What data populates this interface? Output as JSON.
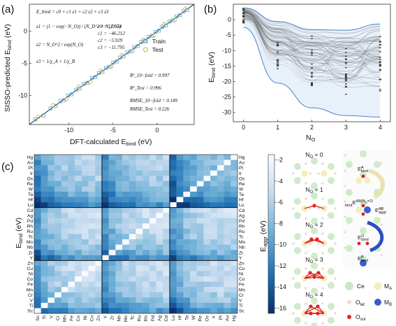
{
  "panels": {
    "a": {
      "label": "(a)",
      "equations": {
        "e1": "E_bind = c0 + c1 z1 + c2 z2 + c3 z3",
        "z1": "z1 = (1 − exp(−N_O)) / (N_D^2 + N_O^2)",
        "z2": "z2 = N_O^2 / exp(N_O)",
        "z3": "z3 = 1/χ_A + 1/χ_B",
        "c0": "c0 = 12.554",
        "c1": "c1 = −46.212",
        "c2": "c2 = −5.929",
        "c3": "c3 = −11.795",
        "r2_10": "R²_10−fold = 0.997",
        "r2_test": "R²_Test = 0.996",
        "rmse_10": "RMSE_10−fold = 0.149",
        "rmse_test": "RMSE_Test = 0.226"
      },
      "legend": {
        "train": "Train",
        "test": "Test"
      },
      "xlabel": "DFT-calculated E",
      "xlabel_sub": "bind",
      "xlabel_unit": " (eV)",
      "ylabel": "SISSO-predicted E",
      "ylabel_sub": "bind",
      "ylabel_unit": " (eV)",
      "colors": {
        "train": "#4fa3d9",
        "test": "#c9b24a"
      }
    },
    "b": {
      "label": "(b)",
      "xlabel": "N",
      "xlabel_sub": "O",
      "ylabel": "E",
      "ylabel_sub": "bind",
      "ylabel_unit": " (eV)"
    },
    "c": {
      "label": "(c)",
      "ylabel": "E",
      "ylabel_sub": "bind",
      "ylabel_unit": " (eV)",
      "colorbar_label": "E",
      "colorbar_sub": "aggr",
      "colorbar_unit": " (eV)",
      "colorbar_ticks": [
        "-2",
        "-4",
        "-6",
        "-8",
        "-10",
        "-12",
        "-14",
        "-16"
      ]
    },
    "side": {
      "titles": [
        "N",
        "N",
        "N",
        "N",
        "N"
      ],
      "title_sub": "O",
      "title_vals": [
        " = 0",
        " = 1",
        " = 2",
        " = 3",
        " = 4"
      ],
      "energy_labels": {
        "a": "E",
        "a_sup": "A",
        "a_sub": "bind",
        "ab": "E",
        "ab_sup": "AB(N",
        "ab_sup2": "=2)",
        "ab_sub": "bind",
        "aggr": "E",
        "aggr_sup": "AB",
        "aggr_sub": "aggr",
        "o": "E",
        "o_sup": "O",
        "o_sub": "bind",
        "b": "E",
        "b_sup": "B",
        "b_sub": "bind"
      },
      "legend": {
        "ce": "Ce",
        "ma": "M",
        "ma_sub": "A",
        "olat": "O",
        "olat_sub": "lat",
        "mb": "M",
        "mb_sub": "B",
        "osur": "O",
        "osur_sub": "sur"
      }
    }
  },
  "chart_data": [
    {
      "type": "scatter",
      "panel": "a",
      "xlabel": "DFT-calculated Ebind (eV)",
      "ylabel": "SISSO-predicted Ebind (eV)",
      "xlim": [
        -14.5,
        4.2
      ],
      "ylim": [
        -14.5,
        4.2
      ],
      "x_ticks": [
        -10,
        -5,
        0
      ],
      "y_ticks": [
        -10,
        -5,
        0
      ],
      "series": [
        {
          "name": "Train",
          "points": [
            [
              -13.8,
              -13.7
            ],
            [
              -12.9,
              -13.1
            ],
            [
              -12.1,
              -12.0
            ],
            [
              -11.5,
              -11.6
            ],
            [
              -11.0,
              -10.9
            ],
            [
              -10.6,
              -10.7
            ],
            [
              -10.1,
              -10.0
            ],
            [
              -9.7,
              -9.8
            ],
            [
              -9.2,
              -9.1
            ],
            [
              -8.8,
              -8.9
            ],
            [
              -8.3,
              -8.2
            ],
            [
              -7.9,
              -8.0
            ],
            [
              -7.4,
              -7.3
            ],
            [
              -7.0,
              -7.1
            ],
            [
              -6.6,
              -6.5
            ],
            [
              -6.2,
              -6.3
            ],
            [
              -5.8,
              -5.7
            ],
            [
              -5.4,
              -5.5
            ],
            [
              -5.0,
              -4.9
            ],
            [
              -4.6,
              -4.7
            ],
            [
              -4.2,
              -4.1
            ],
            [
              -3.8,
              -3.9
            ],
            [
              -3.4,
              -3.3
            ],
            [
              -3.0,
              -3.1
            ],
            [
              -2.6,
              -2.5
            ],
            [
              -2.2,
              -2.3
            ],
            [
              -1.8,
              -1.7
            ],
            [
              -1.4,
              -1.5
            ],
            [
              -1.0,
              -0.9
            ],
            [
              -0.6,
              -0.7
            ],
            [
              -0.2,
              -0.1
            ],
            [
              0.2,
              0.1
            ],
            [
              0.6,
              0.7
            ],
            [
              1.0,
              0.9
            ],
            [
              1.4,
              1.5
            ],
            [
              1.8,
              1.7
            ],
            [
              2.2,
              2.3
            ],
            [
              2.6,
              2.5
            ],
            [
              3.0,
              3.1
            ],
            [
              3.4,
              3.3
            ]
          ]
        },
        {
          "name": "Test",
          "points": [
            [
              -13.5,
              -13.3
            ],
            [
              -11.8,
              -11.5
            ],
            [
              -10.3,
              -10.6
            ],
            [
              -8.9,
              -8.6
            ],
            [
              -7.6,
              -7.9
            ],
            [
              -6.4,
              -6.1
            ],
            [
              -5.2,
              -5.5
            ],
            [
              -4.0,
              -3.7
            ],
            [
              -2.8,
              -3.1
            ],
            [
              -1.6,
              -1.3
            ],
            [
              -0.4,
              -0.7
            ],
            [
              0.8,
              1.1
            ],
            [
              2.0,
              1.7
            ],
            [
              3.2,
              3.5
            ]
          ]
        }
      ]
    },
    {
      "type": "line",
      "panel": "b",
      "xlabel": "NO",
      "ylabel": "Ebind (eV)",
      "xlim": [
        -0.3,
        4.3
      ],
      "ylim": [
        -33,
        5
      ],
      "x_ticks": [
        0,
        1,
        2,
        3,
        4
      ],
      "y_ticks": [
        0,
        -5,
        -10,
        -15,
        -20,
        -25,
        -30
      ],
      "x": [
        0,
        1,
        2,
        3,
        4
      ],
      "envelope_upper": [
        3.8,
        -0.6,
        -3.2,
        -3.4,
        -1.4
      ],
      "envelope_lower": [
        -2.5,
        -20.5,
        -28.5,
        -31.0,
        -31.5
      ]
    },
    {
      "type": "heatmap",
      "panel": "c",
      "x_labels": [
        "Sc",
        "Ti",
        "V",
        "Cr",
        "Mn",
        "Fe",
        "Co",
        "Ni",
        "Cu",
        "Zn",
        "Y",
        "Zr",
        "Nb",
        "Mo",
        "Tc",
        "Ru",
        "Rh",
        "Pd",
        "Ag",
        "Cd",
        "Lu",
        "Hf",
        "Ta",
        "W",
        "Re",
        "Os",
        "Ir",
        "Pt",
        "Au",
        "Hg"
      ],
      "y_labels_right": [
        "Hg",
        "Au",
        "Pt",
        "Ir",
        "Os",
        "Re",
        "W",
        "Ta",
        "Hf",
        "Lu",
        "Cd",
        "Ag",
        "Pd",
        "Rh",
        "Ru",
        "Tc",
        "Mo",
        "Nb",
        "Zr",
        "Y",
        "Zn",
        "Cu",
        "Ni",
        "Co",
        "Fe",
        "Mn",
        "Cr",
        "V",
        "Ti",
        "Sc"
      ],
      "y_labels_left": [
        "Hg",
        "Au",
        "Pt",
        "Ir",
        "Os",
        "Re",
        "W",
        "Ta",
        "Hf",
        "Lu",
        "Cd",
        "Ag",
        "Pd",
        "Rh",
        "Ru",
        "Tc",
        "Mo",
        "Nb",
        "Zr",
        "Y",
        "Zn",
        "Cu",
        "Ni",
        "Co",
        "Fe",
        "Mn",
        "Cr",
        "V",
        "Ti",
        "Sc"
      ],
      "colorbar_range": [
        -16.5,
        -1.5
      ]
    }
  ]
}
